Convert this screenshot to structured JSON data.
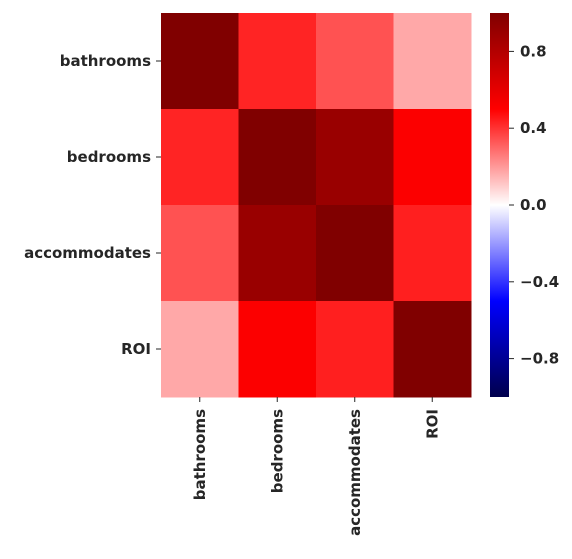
{
  "chart_data": {
    "type": "heatmap",
    "title": "",
    "xlabel": "",
    "ylabel": "",
    "row_labels": [
      "bathrooms",
      "bedrooms",
      "accommodates",
      "ROI"
    ],
    "col_labels": [
      "bathrooms",
      "bedrooms",
      "accommodates",
      "ROI"
    ],
    "values": [
      [
        1.0,
        0.43,
        0.34,
        0.17
      ],
      [
        0.43,
        1.0,
        0.9,
        0.51
      ],
      [
        0.34,
        0.9,
        1.0,
        0.44
      ],
      [
        0.17,
        0.51,
        0.44,
        1.0
      ]
    ],
    "colormap": "seismic",
    "vmin": -1.0,
    "vmax": 1.0,
    "colorbar": {
      "ticks": [
        0.8,
        0.4,
        0.0,
        -0.4,
        -0.8
      ],
      "tick_labels": [
        "0.8",
        "0.4",
        "0.0",
        "−0.4",
        "−0.8"
      ]
    },
    "grid": false,
    "legend": "colorbar-right"
  }
}
